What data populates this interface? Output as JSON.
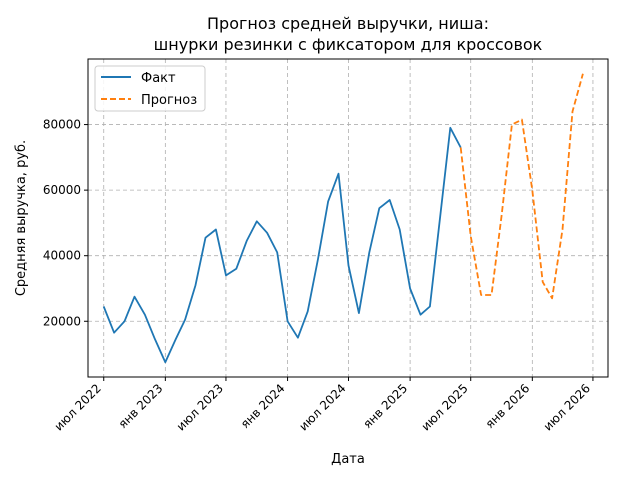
{
  "chart_data": {
    "type": "line",
    "title_line1": "Прогноз средней выручки, ниша:",
    "title_line2": "шнурки резинки с фиксатором для кроссовок",
    "xlabel": "Дата",
    "ylabel": "Средняя выручка, руб.",
    "ylim": [
      3000,
      100000
    ],
    "y_ticks": [
      20000,
      40000,
      60000,
      80000
    ],
    "x_ticks": [
      {
        "date": "2022-07-01",
        "label": "июл 2022"
      },
      {
        "date": "2023-01-01",
        "label": "янв 2023"
      },
      {
        "date": "2023-07-01",
        "label": "июл 2023"
      },
      {
        "date": "2024-01-01",
        "label": "янв 2024"
      },
      {
        "date": "2024-07-01",
        "label": "июл 2024"
      },
      {
        "date": "2025-01-01",
        "label": "янв 2025"
      },
      {
        "date": "2025-07-01",
        "label": "июл 2025"
      },
      {
        "date": "2026-01-01",
        "label": "янв 2026"
      },
      {
        "date": "2026-07-01",
        "label": "июл 2026"
      }
    ],
    "xlim": [
      "2022-05-15",
      "2026-08-15"
    ],
    "grid": true,
    "legend_position": "top-left",
    "series": [
      {
        "name": "Факт",
        "color": "#1f77b4",
        "style": "solid",
        "points": [
          [
            "2022-07-01",
            24500
          ],
          [
            "2022-08-01",
            16500
          ],
          [
            "2022-09-01",
            20000
          ],
          [
            "2022-10-01",
            27500
          ],
          [
            "2022-11-01",
            22000
          ],
          [
            "2022-12-01",
            14500
          ],
          [
            "2023-01-01",
            7500
          ],
          [
            "2023-02-01",
            14500
          ],
          [
            "2023-03-01",
            20500
          ],
          [
            "2023-04-01",
            31000
          ],
          [
            "2023-05-01",
            45500
          ],
          [
            "2023-06-01",
            48000
          ],
          [
            "2023-07-01",
            34000
          ],
          [
            "2023-08-01",
            36000
          ],
          [
            "2023-09-01",
            44500
          ],
          [
            "2023-10-01",
            50500
          ],
          [
            "2023-11-01",
            47000
          ],
          [
            "2023-12-01",
            41000
          ],
          [
            "2024-01-01",
            20000
          ],
          [
            "2024-02-01",
            15000
          ],
          [
            "2024-03-01",
            23000
          ],
          [
            "2024-04-01",
            39000
          ],
          [
            "2024-05-01",
            56500
          ],
          [
            "2024-06-01",
            65000
          ],
          [
            "2024-07-01",
            37000
          ],
          [
            "2024-08-01",
            22500
          ],
          [
            "2024-09-01",
            41000
          ],
          [
            "2024-10-01",
            54500
          ],
          [
            "2024-11-01",
            57000
          ],
          [
            "2024-12-01",
            48000
          ],
          [
            "2025-01-01",
            30000
          ],
          [
            "2025-02-01",
            22000
          ],
          [
            "2025-03-01",
            24500
          ],
          [
            "2025-04-01",
            52000
          ],
          [
            "2025-05-01",
            79000
          ],
          [
            "2025-06-01",
            73000
          ]
        ]
      },
      {
        "name": "Прогноз",
        "color": "#ff7f0e",
        "style": "dashed",
        "points": [
          [
            "2025-06-01",
            73000
          ],
          [
            "2025-07-01",
            46000
          ],
          [
            "2025-08-01",
            28000
          ],
          [
            "2025-09-01",
            28000
          ],
          [
            "2025-10-01",
            52000
          ],
          [
            "2025-11-01",
            80000
          ],
          [
            "2025-12-01",
            81500
          ],
          [
            "2026-01-01",
            60000
          ],
          [
            "2026-02-01",
            32000
          ],
          [
            "2026-03-01",
            27000
          ],
          [
            "2026-04-01",
            48000
          ],
          [
            "2026-05-01",
            84000
          ],
          [
            "2026-06-01",
            95500
          ]
        ]
      }
    ]
  }
}
